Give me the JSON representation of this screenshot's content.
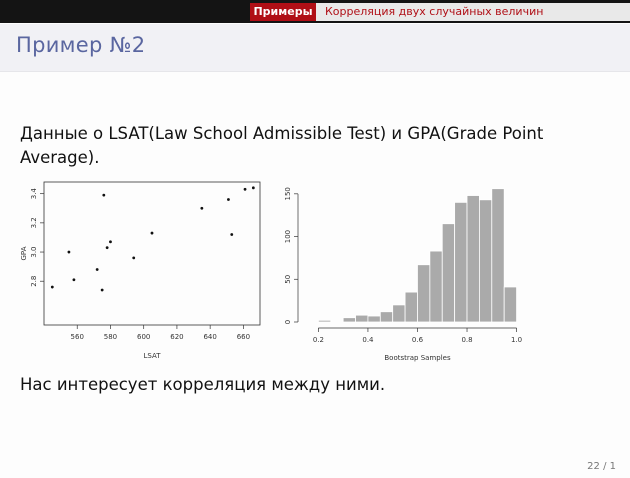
{
  "nav": {
    "section": "Примеры",
    "subsection": "Корреляция двух случайных величин"
  },
  "frame_title": "Пример №2",
  "body_text": "Данные о LSAT(Law School Admissible Test) и GPA(Grade Point Average).",
  "question_text": "Нас интересует корреляция между ними.",
  "page_number": "22 / 1",
  "colors": {
    "nav_active": "#b00f16",
    "title": "#5a66a0",
    "bars": "#aaaaaa"
  },
  "chart_data": [
    {
      "type": "scatter",
      "xlabel": "LSAT",
      "ylabel": "GPA",
      "xlim": [
        540,
        670
      ],
      "ylim": [
        2.5,
        3.48
      ],
      "xticks": [
        560,
        580,
        600,
        620,
        640,
        660
      ],
      "yticks": [
        2.8,
        3.0,
        3.2,
        3.4
      ],
      "points": [
        {
          "x": 545,
          "y": 2.76
        },
        {
          "x": 555,
          "y": 3.0
        },
        {
          "x": 558,
          "y": 2.81
        },
        {
          "x": 572,
          "y": 2.88
        },
        {
          "x": 575,
          "y": 2.74
        },
        {
          "x": 576,
          "y": 3.39
        },
        {
          "x": 578,
          "y": 3.03
        },
        {
          "x": 580,
          "y": 3.07
        },
        {
          "x": 594,
          "y": 2.96
        },
        {
          "x": 605,
          "y": 3.13
        },
        {
          "x": 635,
          "y": 3.3
        },
        {
          "x": 651,
          "y": 3.36
        },
        {
          "x": 653,
          "y": 3.12
        },
        {
          "x": 661,
          "y": 3.43
        },
        {
          "x": 666,
          "y": 3.44
        }
      ],
      "grid": false
    },
    {
      "type": "bar",
      "subtype": "histogram",
      "xlabel": "Bootstrap Samples",
      "ylabel": "",
      "xlim": [
        0.15,
        1.03
      ],
      "ylim": [
        0,
        165
      ],
      "xticks": [
        0.2,
        0.4,
        0.6,
        0.8,
        1.0
      ],
      "yticks": [
        0,
        50,
        100,
        150
      ],
      "bins": [
        {
          "x0": 0.2,
          "x1": 0.25,
          "value": 2
        },
        {
          "x0": 0.25,
          "x1": 0.3,
          "value": 0
        },
        {
          "x0": 0.3,
          "x1": 0.35,
          "value": 5
        },
        {
          "x0": 0.35,
          "x1": 0.4,
          "value": 8
        },
        {
          "x0": 0.4,
          "x1": 0.45,
          "value": 7
        },
        {
          "x0": 0.45,
          "x1": 0.5,
          "value": 12
        },
        {
          "x0": 0.5,
          "x1": 0.55,
          "value": 20
        },
        {
          "x0": 0.55,
          "x1": 0.6,
          "value": 35
        },
        {
          "x0": 0.6,
          "x1": 0.65,
          "value": 67
        },
        {
          "x0": 0.65,
          "x1": 0.7,
          "value": 83
        },
        {
          "x0": 0.7,
          "x1": 0.75,
          "value": 115
        },
        {
          "x0": 0.75,
          "x1": 0.8,
          "value": 140
        },
        {
          "x0": 0.8,
          "x1": 0.85,
          "value": 148
        },
        {
          "x0": 0.85,
          "x1": 0.9,
          "value": 143
        },
        {
          "x0": 0.9,
          "x1": 0.95,
          "value": 156
        },
        {
          "x0": 0.95,
          "x1": 1.0,
          "value": 41
        }
      ],
      "grid": false
    }
  ]
}
